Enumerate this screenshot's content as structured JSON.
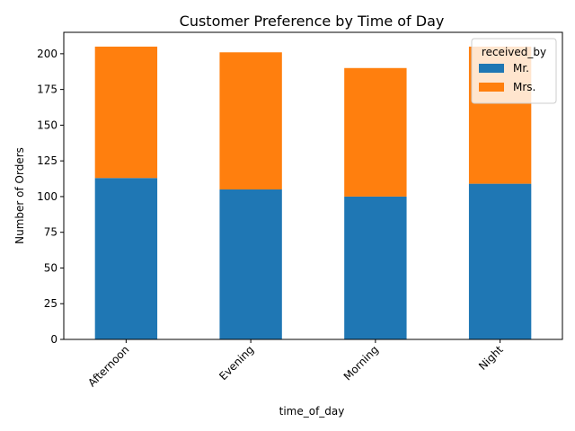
{
  "chart_data": {
    "type": "bar",
    "stacked": true,
    "title": "Customer Preference by Time of Day",
    "xlabel": "time_of_day",
    "ylabel": "Number of Orders",
    "categories": [
      "Afternoon",
      "Evening",
      "Morning",
      "Night"
    ],
    "series": [
      {
        "name": "Mr.",
        "values": [
          113,
          105,
          100,
          109
        ],
        "color": "#1f77b4"
      },
      {
        "name": "Mrs.",
        "values": [
          92,
          96,
          90,
          96
        ],
        "color": "#ff7f0e"
      }
    ],
    "ylim": [
      0,
      215
    ],
    "yticks": [
      0,
      25,
      50,
      75,
      100,
      125,
      150,
      175,
      200
    ],
    "grid": false,
    "legend": {
      "title": "received_by",
      "placement": "top-right"
    }
  }
}
